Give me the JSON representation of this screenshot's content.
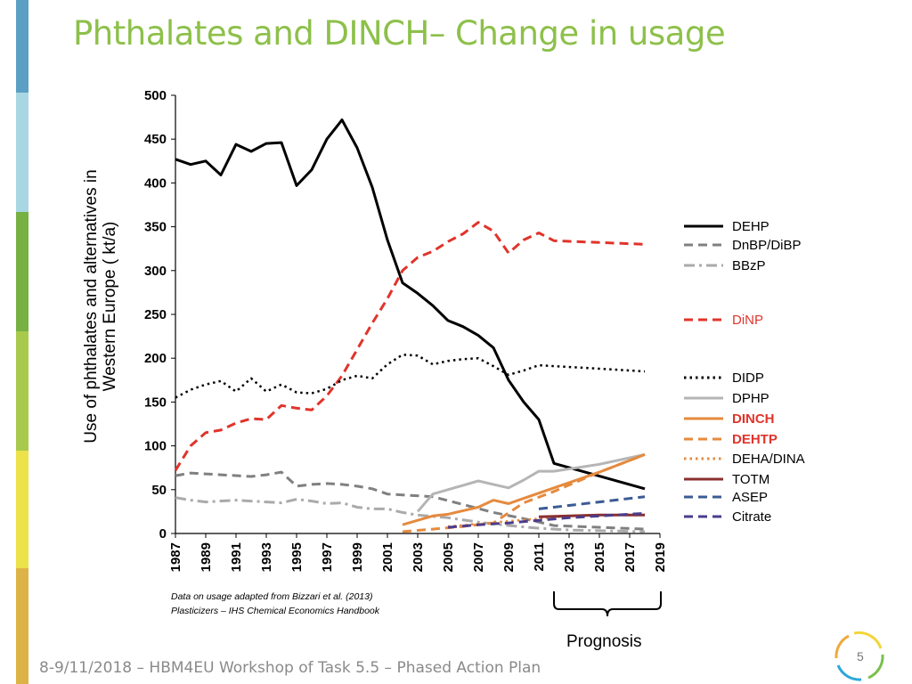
{
  "slide": {
    "title": "Phthalates and DINCH– Change in usage",
    "footer": "8-9/11/2018 – HBM4EU Workshop of Task 5.5 – Phased Action Plan",
    "page_number": "5",
    "source_line1": "Data on usage adapted from Bizzari et al. (2013)",
    "source_line2": "Plasticizers – IHS Chemical Economics Handbook",
    "prognosis_label": "Prognosis",
    "stripe_colors": [
      "#5ba0c4",
      "#a9d6e3",
      "#77b043",
      "#a9c94c",
      "#ece24a",
      "#ddb347"
    ],
    "logo_colors": [
      "#f2d63b",
      "#79c04a",
      "#2ea8d8",
      "#f0a93b"
    ]
  },
  "chart_data": {
    "type": "line",
    "title": "",
    "ylabel": "Use of phthalates and alternatives in Western Europe ( kt/a)",
    "xlabel": "",
    "xlim": [
      1987,
      2019
    ],
    "ylim": [
      0,
      500
    ],
    "y_ticks": [
      0,
      50,
      100,
      150,
      200,
      250,
      300,
      350,
      400,
      450,
      500
    ],
    "x_ticks": [
      1987,
      1989,
      1991,
      1993,
      1995,
      1997,
      1999,
      2001,
      2003,
      2005,
      2007,
      2009,
      2011,
      2013,
      2015,
      2017,
      2019
    ],
    "grid": false,
    "legend_placement": "right",
    "series": [
      {
        "name": "DEHP",
        "color": "#000000",
        "dash": "solid",
        "width": 3,
        "x": [
          1987,
          1988,
          1989,
          1990,
          1991,
          1992,
          1993,
          1994,
          1995,
          1996,
          1997,
          1998,
          1999,
          2000,
          2001,
          2002,
          2003,
          2004,
          2005,
          2006,
          2007,
          2008,
          2009,
          2010,
          2011,
          2012,
          2018
        ],
        "y": [
          427,
          421,
          425,
          409,
          444,
          436,
          445,
          446,
          397,
          415,
          450,
          472,
          440,
          395,
          335,
          286,
          274,
          260,
          243,
          236,
          226,
          212,
          175,
          150,
          130,
          80,
          51
        ]
      },
      {
        "name": "DnBP/DiBP",
        "color": "#808080",
        "dash": "dash",
        "width": 3,
        "x": [
          1987,
          1988,
          1990,
          1992,
          1993,
          1994,
          1995,
          1996,
          1997,
          1998,
          1999,
          2000,
          2001,
          2002,
          2004,
          2006,
          2008,
          2010,
          2012,
          2018
        ],
        "y": [
          66,
          69,
          67,
          65,
          67,
          70,
          54,
          56,
          57,
          56,
          54,
          51,
          45,
          44,
          42,
          33,
          24,
          17,
          9,
          5
        ]
      },
      {
        "name": "BBzP",
        "color": "#aaaaaa",
        "dash": "dashdot",
        "width": 3,
        "x": [
          1987,
          1988,
          1989,
          1991,
          1993,
          1994,
          1995,
          1996,
          1997,
          1998,
          1999,
          2000,
          2001,
          2002,
          2003,
          2005,
          2007,
          2009,
          2011,
          2013,
          2018
        ],
        "y": [
          41,
          38,
          36,
          38,
          36,
          35,
          39,
          37,
          34,
          35,
          30,
          28,
          28,
          24,
          21,
          18,
          13,
          9,
          6,
          4,
          2
        ]
      },
      {
        "name": "DiNP",
        "color": "#e0342b",
        "dash": "dash",
        "width": 3,
        "x": [
          1987,
          1988,
          1989,
          1990,
          1991,
          1992,
          1993,
          1994,
          1995,
          1996,
          1997,
          1998,
          1999,
          2000,
          2001,
          2002,
          2003,
          2004,
          2005,
          2006,
          2007,
          2008,
          2009,
          2010,
          2011,
          2012,
          2015,
          2018
        ],
        "y": [
          72,
          100,
          115,
          118,
          126,
          131,
          130,
          146,
          143,
          141,
          157,
          180,
          210,
          240,
          268,
          300,
          315,
          322,
          333,
          342,
          355,
          345,
          320,
          335,
          343,
          334,
          332,
          330
        ]
      },
      {
        "name": "DIDP",
        "color": "#000000",
        "dash": "dot",
        "width": 2.5,
        "x": [
          1987,
          1988,
          1989,
          1990,
          1991,
          1992,
          1993,
          1994,
          1995,
          1996,
          1997,
          1998,
          1999,
          2000,
          2001,
          2002,
          2003,
          2004,
          2005,
          2006,
          2007,
          2008,
          2009,
          2010,
          2011,
          2012,
          2015,
          2018
        ],
        "y": [
          155,
          164,
          170,
          174,
          162,
          177,
          162,
          170,
          161,
          160,
          165,
          175,
          180,
          177,
          193,
          204,
          203,
          193,
          197,
          199,
          200,
          191,
          181,
          186,
          192,
          191,
          188,
          185
        ]
      },
      {
        "name": "DPHP",
        "color": "#b5b5b5",
        "dash": "solid",
        "width": 3,
        "x": [
          2003,
          2004,
          2005,
          2006,
          2007,
          2008,
          2009,
          2010,
          2011,
          2012,
          2015,
          2018
        ],
        "y": [
          25,
          45,
          50,
          55,
          60,
          56,
          52,
          61,
          71,
          71,
          79,
          90
        ]
      },
      {
        "name": "DINCH",
        "color": "#e58a3e",
        "dash": "solid",
        "width": 3,
        "x": [
          2002,
          2003,
          2004,
          2005,
          2006,
          2007,
          2008,
          2009,
          2010,
          2011,
          2012,
          2015,
          2018
        ],
        "y": [
          10,
          15,
          20,
          22,
          26,
          30,
          38,
          34,
          40,
          46,
          52,
          70,
          90
        ]
      },
      {
        "name": "DEHTP",
        "color": "#e58a3e",
        "dash": "dash",
        "width": 3,
        "x": [
          2002,
          2004,
          2006,
          2008,
          2010,
          2012,
          2015,
          2018
        ],
        "y": [
          2,
          5,
          8,
          12,
          35,
          48,
          70,
          90
        ]
      },
      {
        "name": "DEHA/DINA",
        "color": "#e58a3e",
        "dash": "dot",
        "width": 2.5,
        "x": [
          2005,
          2007,
          2009,
          2011,
          2013,
          2018
        ],
        "y": [
          8,
          11,
          14,
          17,
          20,
          22
        ]
      },
      {
        "name": "TOTM",
        "color": "#8a2f2f",
        "dash": "solid",
        "width": 3,
        "x": [
          2011,
          2013,
          2015,
          2018
        ],
        "y": [
          19,
          20,
          21,
          21
        ]
      },
      {
        "name": "ASEP",
        "color": "#3b5b94",
        "dash": "dash",
        "width": 3,
        "x": [
          2011,
          2013,
          2015,
          2018
        ],
        "y": [
          28,
          32,
          36,
          42
        ]
      },
      {
        "name": "Citrate",
        "color": "#4b3c8c",
        "dash": "dash",
        "width": 3,
        "x": [
          2005,
          2007,
          2009,
          2011,
          2013,
          2015,
          2018
        ],
        "y": [
          7,
          10,
          12,
          15,
          18,
          20,
          23
        ]
      }
    ],
    "legend": [
      {
        "label": "DEHP",
        "color": "#000000",
        "text_color": "#000000",
        "bold": false,
        "dash": "solid"
      },
      {
        "label": "DnBP/DiBP",
        "color": "#808080",
        "text_color": "#000000",
        "bold": false,
        "dash": "dash"
      },
      {
        "label": "BBzP",
        "color": "#aaaaaa",
        "text_color": "#000000",
        "bold": false,
        "dash": "dashdot"
      },
      {
        "label": "DiNP",
        "color": "#e0342b",
        "text_color": "#e0342b",
        "bold": false,
        "dash": "dash"
      },
      {
        "label": "DIDP",
        "color": "#000000",
        "text_color": "#000000",
        "bold": false,
        "dash": "dot"
      },
      {
        "label": "DPHP",
        "color": "#b5b5b5",
        "text_color": "#000000",
        "bold": false,
        "dash": "solid"
      },
      {
        "label": "DINCH",
        "color": "#e58a3e",
        "text_color": "#e0342b",
        "bold": true,
        "dash": "solid"
      },
      {
        "label": "DEHTP",
        "color": "#e58a3e",
        "text_color": "#e0342b",
        "bold": true,
        "dash": "dash"
      },
      {
        "label": "DEHA/DINA",
        "color": "#e58a3e",
        "text_color": "#000000",
        "bold": false,
        "dash": "dot"
      },
      {
        "label": "TOTM",
        "color": "#8a2f2f",
        "text_color": "#000000",
        "bold": false,
        "dash": "solid"
      },
      {
        "label": "ASEP",
        "color": "#3b5b94",
        "text_color": "#000000",
        "bold": false,
        "dash": "dash"
      },
      {
        "label": "Citrate",
        "color": "#4b3c8c",
        "text_color": "#000000",
        "bold": false,
        "dash": "dash"
      }
    ]
  }
}
